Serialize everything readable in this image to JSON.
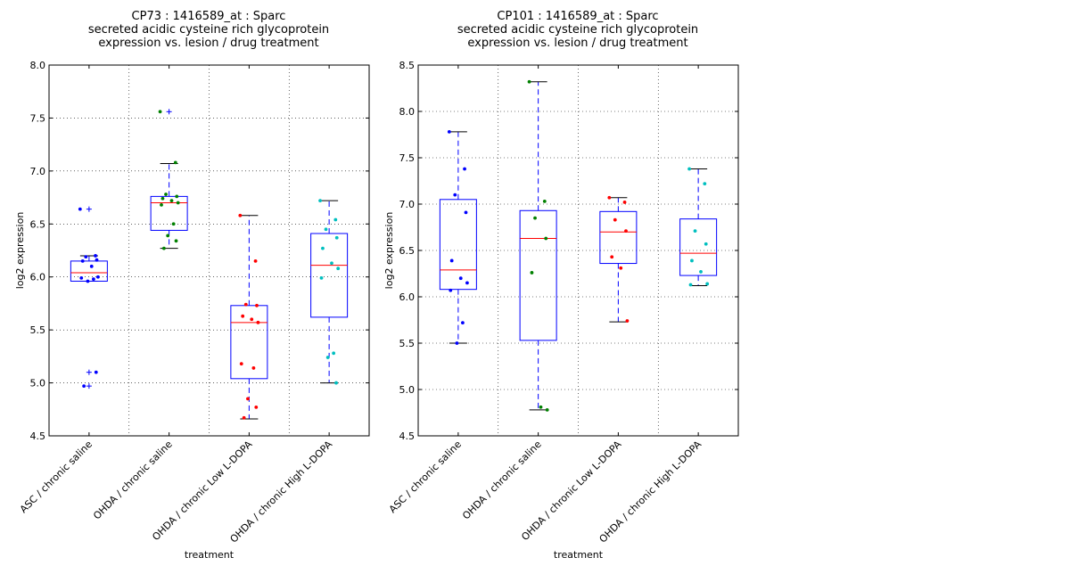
{
  "chart_data": [
    {
      "type": "box",
      "title_lines": [
        "CP73 : 1416589_at : Sparc",
        "secreted acidic cysteine rich glycoprotein",
        "expression vs. lesion / drug treatment"
      ],
      "xlabel": "treatment",
      "ylabel": "log2 expression",
      "ylim": [
        4.5,
        8.0
      ],
      "yticks": [
        "4.5",
        "5.0",
        "5.5",
        "6.0",
        "6.5",
        "7.0",
        "7.5",
        "8.0"
      ],
      "grid": true,
      "categories": [
        "ASC / chronic saline",
        "OHDA / chronic saline",
        "OHDA / chronic Low L-DOPA",
        "OHDA / chronic High L-DOPA"
      ],
      "boxes": [
        {
          "q1": 5.96,
          "median": 6.04,
          "q3": 6.15,
          "whislo": 5.96,
          "whishi": 6.2,
          "fliers": [
            6.64,
            5.1,
            4.97
          ],
          "color": "#0000ff",
          "points": [
            6.64,
            6.2,
            6.19,
            6.16,
            6.15,
            6.1,
            6.0,
            5.99,
            5.98,
            5.96,
            5.1,
            4.97
          ]
        },
        {
          "q1": 6.44,
          "median": 6.7,
          "q3": 6.76,
          "whislo": 6.27,
          "whishi": 7.07,
          "fliers": [
            7.56
          ],
          "color": "#008000",
          "points": [
            7.56,
            7.08,
            6.78,
            6.76,
            6.74,
            6.72,
            6.7,
            6.68,
            6.5,
            6.39,
            6.34,
            6.27
          ]
        },
        {
          "q1": 5.04,
          "median": 5.57,
          "q3": 5.73,
          "whislo": 4.66,
          "whishi": 6.58,
          "fliers": [],
          "color": "#ff0000",
          "points": [
            6.58,
            6.15,
            5.74,
            5.73,
            5.63,
            5.6,
            5.57,
            5.18,
            5.14,
            4.85,
            4.77,
            4.67
          ]
        },
        {
          "q1": 5.62,
          "median": 6.11,
          "q3": 6.41,
          "whislo": 5.0,
          "whishi": 6.72,
          "fliers": [],
          "color": "#00bfbf",
          "points": [
            6.72,
            6.54,
            6.45,
            6.37,
            6.27,
            6.13,
            6.08,
            5.99,
            5.28,
            5.24,
            5.0
          ]
        }
      ]
    },
    {
      "type": "box",
      "title_lines": [
        "CP101 : 1416589_at : Sparc",
        "secreted acidic cysteine rich glycoprotein",
        "expression vs. lesion / drug treatment"
      ],
      "xlabel": "treatment",
      "ylabel": "log2 expression",
      "ylim": [
        4.5,
        8.5
      ],
      "yticks": [
        "4.5",
        "5.0",
        "5.5",
        "6.0",
        "6.5",
        "7.0",
        "7.5",
        "8.0",
        "8.5"
      ],
      "grid": true,
      "categories": [
        "ASC / chronic saline",
        "OHDA / chronic saline",
        "OHDA / chronic Low L-DOPA",
        "OHDA / chronic High L-DOPA"
      ],
      "boxes": [
        {
          "q1": 6.08,
          "median": 6.29,
          "q3": 7.05,
          "whislo": 5.5,
          "whishi": 7.78,
          "fliers": [],
          "color": "#0000ff",
          "points": [
            7.78,
            7.38,
            7.1,
            6.91,
            6.39,
            6.2,
            6.15,
            6.07,
            5.72,
            5.5
          ]
        },
        {
          "q1": 5.53,
          "median": 6.63,
          "q3": 6.93,
          "whislo": 4.78,
          "whishi": 8.32,
          "fliers": [],
          "color": "#008000",
          "points": [
            8.32,
            7.03,
            6.85,
            6.63,
            6.26,
            4.81,
            4.78
          ]
        },
        {
          "q1": 6.36,
          "median": 6.7,
          "q3": 6.92,
          "whislo": 5.73,
          "whishi": 7.07,
          "fliers": [],
          "color": "#ff0000",
          "points": [
            7.07,
            7.02,
            6.83,
            6.71,
            6.43,
            6.31,
            5.74
          ]
        },
        {
          "q1": 6.23,
          "median": 6.47,
          "q3": 6.84,
          "whislo": 6.12,
          "whishi": 7.38,
          "fliers": [],
          "color": "#00bfbf",
          "points": [
            7.38,
            7.22,
            6.71,
            6.57,
            6.39,
            6.27,
            6.14,
            6.13
          ]
        }
      ]
    }
  ]
}
